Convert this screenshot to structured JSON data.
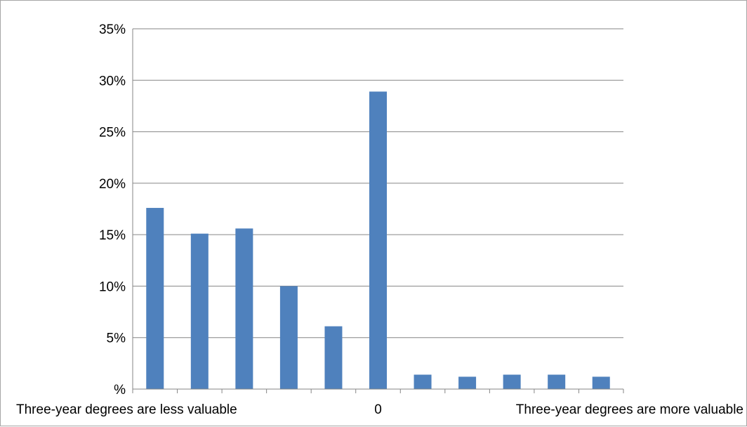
{
  "chart_data": {
    "type": "bar",
    "categories": [
      "Three-year degrees are less valuable",
      "",
      "",
      "",
      "",
      "0",
      "",
      "",
      "",
      "",
      "Three-year degrees are more valuable"
    ],
    "values": [
      17.6,
      15.1,
      15.6,
      10.0,
      6.1,
      28.9,
      1.4,
      1.2,
      1.4,
      1.4,
      1.2
    ],
    "title": "",
    "xlabel": "",
    "ylabel": "",
    "ylim": [
      0,
      35
    ],
    "yticks": [
      0,
      5,
      10,
      15,
      20,
      25,
      30,
      35
    ],
    "ytick_labels": [
      "%",
      "5%",
      "10%",
      "15%",
      "20%",
      "25%",
      "30%",
      "35%"
    ],
    "grid": true,
    "legend": "none",
    "bar_color": "#4f81bd",
    "grid_color": "#868686"
  }
}
